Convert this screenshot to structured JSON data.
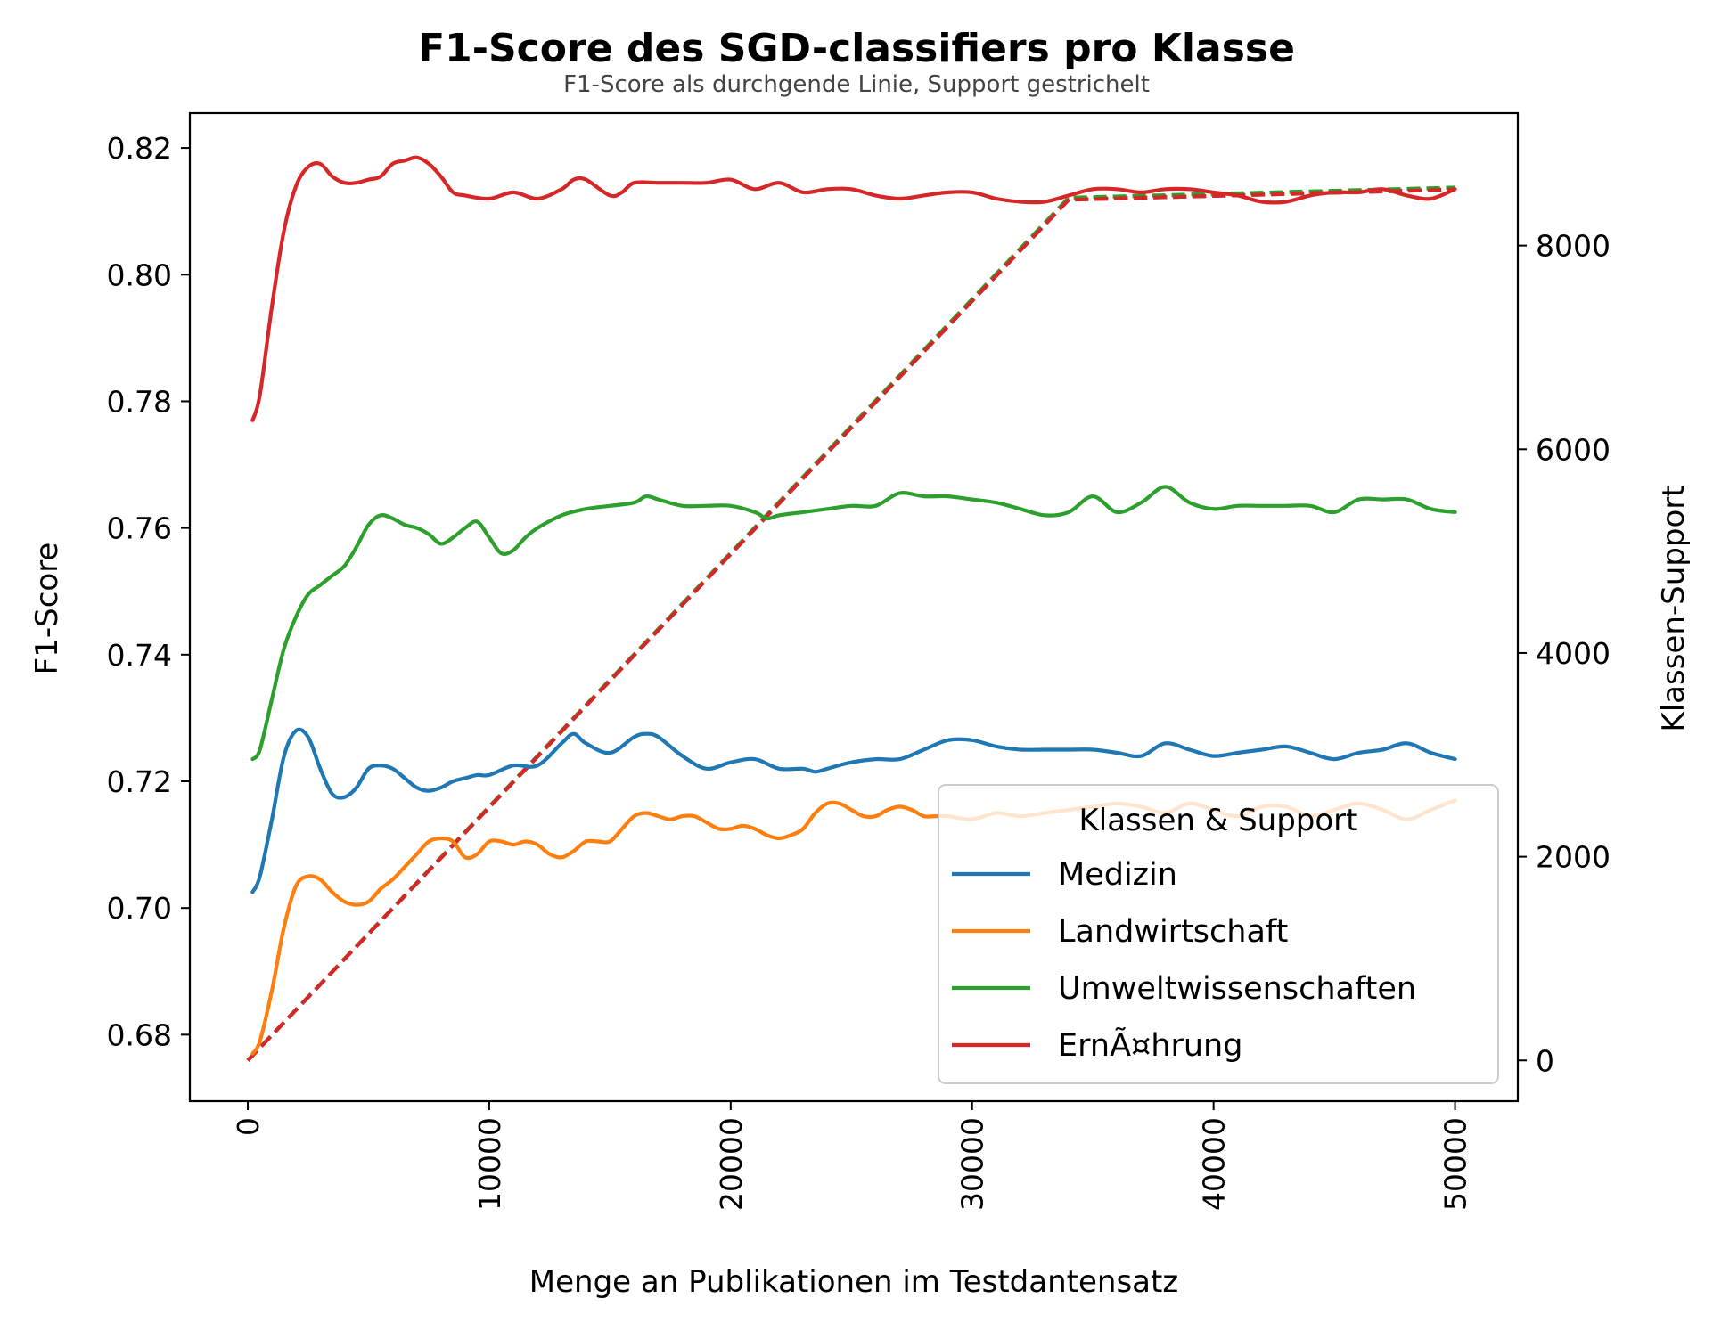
{
  "chart_data": {
    "type": "line",
    "title": "F1-Score des SGD-classifiers pro Klasse",
    "subtitle": "F1-Score als durchgende Linie, Support gestrichelt",
    "xlabel": "Menge an Publikationen im Testdantensatz",
    "ylabel": "F1-Score",
    "y2label": "Klassen-Support",
    "xlim": [
      -2400,
      52600
    ],
    "ylim": [
      0.6695,
      0.8255
    ],
    "y2lim": [
      -400,
      9300
    ],
    "xticks": [
      0,
      10000,
      20000,
      30000,
      40000,
      50000
    ],
    "xtick_labels": [
      "0",
      "10000",
      "20000",
      "30000",
      "40000",
      "50000"
    ],
    "yticks": [
      0.68,
      0.7,
      0.72,
      0.74,
      0.76,
      0.78,
      0.8,
      0.82
    ],
    "ytick_labels": [
      "0.68",
      "0.70",
      "0.72",
      "0.74",
      "0.76",
      "0.78",
      "0.80",
      "0.82"
    ],
    "y2ticks": [
      0,
      2000,
      4000,
      6000,
      8000
    ],
    "y2tick_labels": [
      "0",
      "2000",
      "4000",
      "6000",
      "8000"
    ],
    "grid": false,
    "legend": {
      "title": "Klassen & Support",
      "position": "lower-right"
    },
    "series": [
      {
        "name": "Medizin",
        "color": "#1f77b4",
        "f1": {
          "x": [
            200,
            500,
            1000,
            1500,
            2000,
            2500,
            3000,
            3500,
            4000,
            4500,
            5000,
            5500,
            6000,
            6500,
            7000,
            7500,
            8000,
            8500,
            9000,
            9500,
            10000,
            11000,
            12000,
            13000,
            13500,
            14000,
            15000,
            16000,
            16500,
            17000,
            18000,
            19000,
            20000,
            21000,
            22000,
            23000,
            23500,
            24000,
            25000,
            26000,
            27000,
            28000,
            29000,
            30000,
            31000,
            32000,
            33000,
            34000,
            35000,
            36000,
            37000,
            38000,
            39000,
            40000,
            41000,
            42000,
            43000,
            44000,
            45000,
            46000,
            47000,
            48000,
            49000,
            50000
          ],
          "y": [
            0.7025,
            0.705,
            0.714,
            0.724,
            0.728,
            0.727,
            0.722,
            0.718,
            0.7175,
            0.719,
            0.722,
            0.7225,
            0.722,
            0.7205,
            0.719,
            0.7185,
            0.719,
            0.72,
            0.7205,
            0.721,
            0.721,
            0.7225,
            0.7225,
            0.726,
            0.7275,
            0.726,
            0.7245,
            0.727,
            0.7275,
            0.727,
            0.724,
            0.722,
            0.723,
            0.7235,
            0.722,
            0.722,
            0.7215,
            0.722,
            0.723,
            0.7235,
            0.7235,
            0.725,
            0.7265,
            0.7265,
            0.7255,
            0.725,
            0.725,
            0.725,
            0.725,
            0.7245,
            0.724,
            0.726,
            0.725,
            0.724,
            0.7245,
            0.725,
            0.7255,
            0.7245,
            0.7235,
            0.7245,
            0.725,
            0.726,
            0.7245,
            0.7235
          ]
        },
        "support": {
          "x": [
            0,
            34000,
            50000
          ],
          "y": [
            0,
            8450,
            8550
          ]
        }
      },
      {
        "name": "Landwirtschaft",
        "color": "#ff7f0e",
        "f1": {
          "x": [
            200,
            500,
            1000,
            1500,
            2000,
            2500,
            3000,
            3500,
            4000,
            4500,
            5000,
            5500,
            6000,
            6500,
            7000,
            7500,
            8000,
            8500,
            9000,
            9500,
            10000,
            10500,
            11000,
            11500,
            12000,
            12500,
            13000,
            13500,
            14000,
            14500,
            15000,
            15500,
            16000,
            16500,
            17000,
            17500,
            18000,
            18500,
            19000,
            19500,
            20000,
            20500,
            21000,
            21500,
            22000,
            22500,
            23000,
            23500,
            24000,
            24500,
            25000,
            25500,
            26000,
            26500,
            27000,
            27500,
            28000,
            28500,
            29000,
            30000,
            31000,
            32000,
            33000,
            34000,
            35000,
            36000,
            37000,
            38000,
            39000,
            40000,
            41000,
            42000,
            43000,
            44000,
            45000,
            46000,
            47000,
            48000,
            49000,
            50000
          ],
          "y": [
            0.677,
            0.679,
            0.687,
            0.697,
            0.7035,
            0.705,
            0.7045,
            0.7025,
            0.701,
            0.7005,
            0.701,
            0.703,
            0.7045,
            0.7065,
            0.7085,
            0.7105,
            0.711,
            0.7105,
            0.708,
            0.7085,
            0.7105,
            0.7105,
            0.71,
            0.7105,
            0.71,
            0.7085,
            0.708,
            0.709,
            0.7105,
            0.7105,
            0.7105,
            0.7125,
            0.7145,
            0.715,
            0.7145,
            0.714,
            0.7145,
            0.7145,
            0.7135,
            0.7125,
            0.7125,
            0.713,
            0.7125,
            0.7115,
            0.711,
            0.7115,
            0.7125,
            0.715,
            0.7165,
            0.7165,
            0.7155,
            0.7145,
            0.7145,
            0.7155,
            0.716,
            0.7155,
            0.7145,
            0.7145,
            0.7145,
            0.714,
            0.715,
            0.7145,
            0.715,
            0.7155,
            0.716,
            0.7165,
            0.716,
            0.715,
            0.7165,
            0.7155,
            0.7145,
            0.716,
            0.716,
            0.7145,
            0.7155,
            0.7165,
            0.7155,
            0.714,
            0.7155,
            0.717
          ]
        },
        "support": {
          "x": [
            0,
            34000,
            50000
          ],
          "y": [
            0,
            8460,
            8560
          ]
        }
      },
      {
        "name": "Umweltwissenschaften",
        "color": "#2ca02c",
        "f1": {
          "x": [
            200,
            500,
            1000,
            1500,
            2000,
            2500,
            3000,
            3500,
            4000,
            4500,
            5000,
            5500,
            6000,
            6500,
            7000,
            7500,
            8000,
            8500,
            9000,
            9500,
            10000,
            10500,
            11000,
            11500,
            12000,
            13000,
            14000,
            15000,
            16000,
            16500,
            17000,
            18000,
            19000,
            20000,
            21000,
            21500,
            22000,
            23000,
            24000,
            25000,
            26000,
            27000,
            28000,
            29000,
            30000,
            31000,
            32000,
            33000,
            34000,
            35000,
            36000,
            37000,
            38000,
            39000,
            40000,
            41000,
            42000,
            43000,
            44000,
            45000,
            46000,
            47000,
            48000,
            49000,
            50000
          ],
          "y": [
            0.7235,
            0.725,
            0.733,
            0.741,
            0.746,
            0.7495,
            0.751,
            0.7525,
            0.754,
            0.757,
            0.7605,
            0.762,
            0.7615,
            0.7605,
            0.76,
            0.759,
            0.7575,
            0.7585,
            0.76,
            0.761,
            0.7585,
            0.756,
            0.7565,
            0.7585,
            0.76,
            0.762,
            0.763,
            0.7635,
            0.764,
            0.765,
            0.7645,
            0.7635,
            0.7635,
            0.7635,
            0.7625,
            0.7615,
            0.762,
            0.7625,
            0.763,
            0.7635,
            0.7635,
            0.7655,
            0.765,
            0.765,
            0.7645,
            0.764,
            0.763,
            0.762,
            0.7625,
            0.765,
            0.7625,
            0.764,
            0.7665,
            0.764,
            0.763,
            0.7635,
            0.7635,
            0.7635,
            0.7635,
            0.7625,
            0.7645,
            0.7645,
            0.7645,
            0.763,
            0.7625
          ]
        },
        "support": {
          "x": [
            0,
            34000,
            50000
          ],
          "y": [
            0,
            8470,
            8570
          ]
        }
      },
      {
        "name": "ErnÃ¤hrung",
        "color": "#d62728",
        "f1": {
          "x": [
            200,
            500,
            1000,
            1500,
            2000,
            2500,
            3000,
            3500,
            4000,
            4500,
            5000,
            5500,
            6000,
            6500,
            7000,
            7500,
            8000,
            8500,
            9000,
            10000,
            11000,
            12000,
            13000,
            13500,
            14000,
            15000,
            15500,
            16000,
            17000,
            18000,
            19000,
            20000,
            21000,
            22000,
            23000,
            24000,
            25000,
            26000,
            27000,
            28000,
            29000,
            30000,
            31000,
            32000,
            33000,
            34000,
            35000,
            36000,
            37000,
            38000,
            39000,
            40000,
            41000,
            42000,
            43000,
            44000,
            45000,
            46000,
            47000,
            48000,
            49000,
            50000
          ],
          "y": [
            0.777,
            0.781,
            0.795,
            0.807,
            0.814,
            0.817,
            0.8175,
            0.8155,
            0.8145,
            0.8145,
            0.815,
            0.8155,
            0.8175,
            0.818,
            0.8185,
            0.8175,
            0.8155,
            0.813,
            0.8125,
            0.812,
            0.813,
            0.812,
            0.8135,
            0.815,
            0.815,
            0.8125,
            0.813,
            0.8145,
            0.8145,
            0.8145,
            0.8145,
            0.815,
            0.8135,
            0.8145,
            0.813,
            0.8135,
            0.8135,
            0.8125,
            0.812,
            0.8125,
            0.813,
            0.813,
            0.812,
            0.8115,
            0.8115,
            0.8125,
            0.8135,
            0.8135,
            0.813,
            0.8135,
            0.8135,
            0.813,
            0.8125,
            0.8115,
            0.8115,
            0.8125,
            0.813,
            0.813,
            0.8135,
            0.8125,
            0.812,
            0.8135
          ]
        },
        "support": {
          "x": [
            0,
            34000,
            50000
          ],
          "y": [
            0,
            8450,
            8550
          ]
        }
      }
    ]
  }
}
